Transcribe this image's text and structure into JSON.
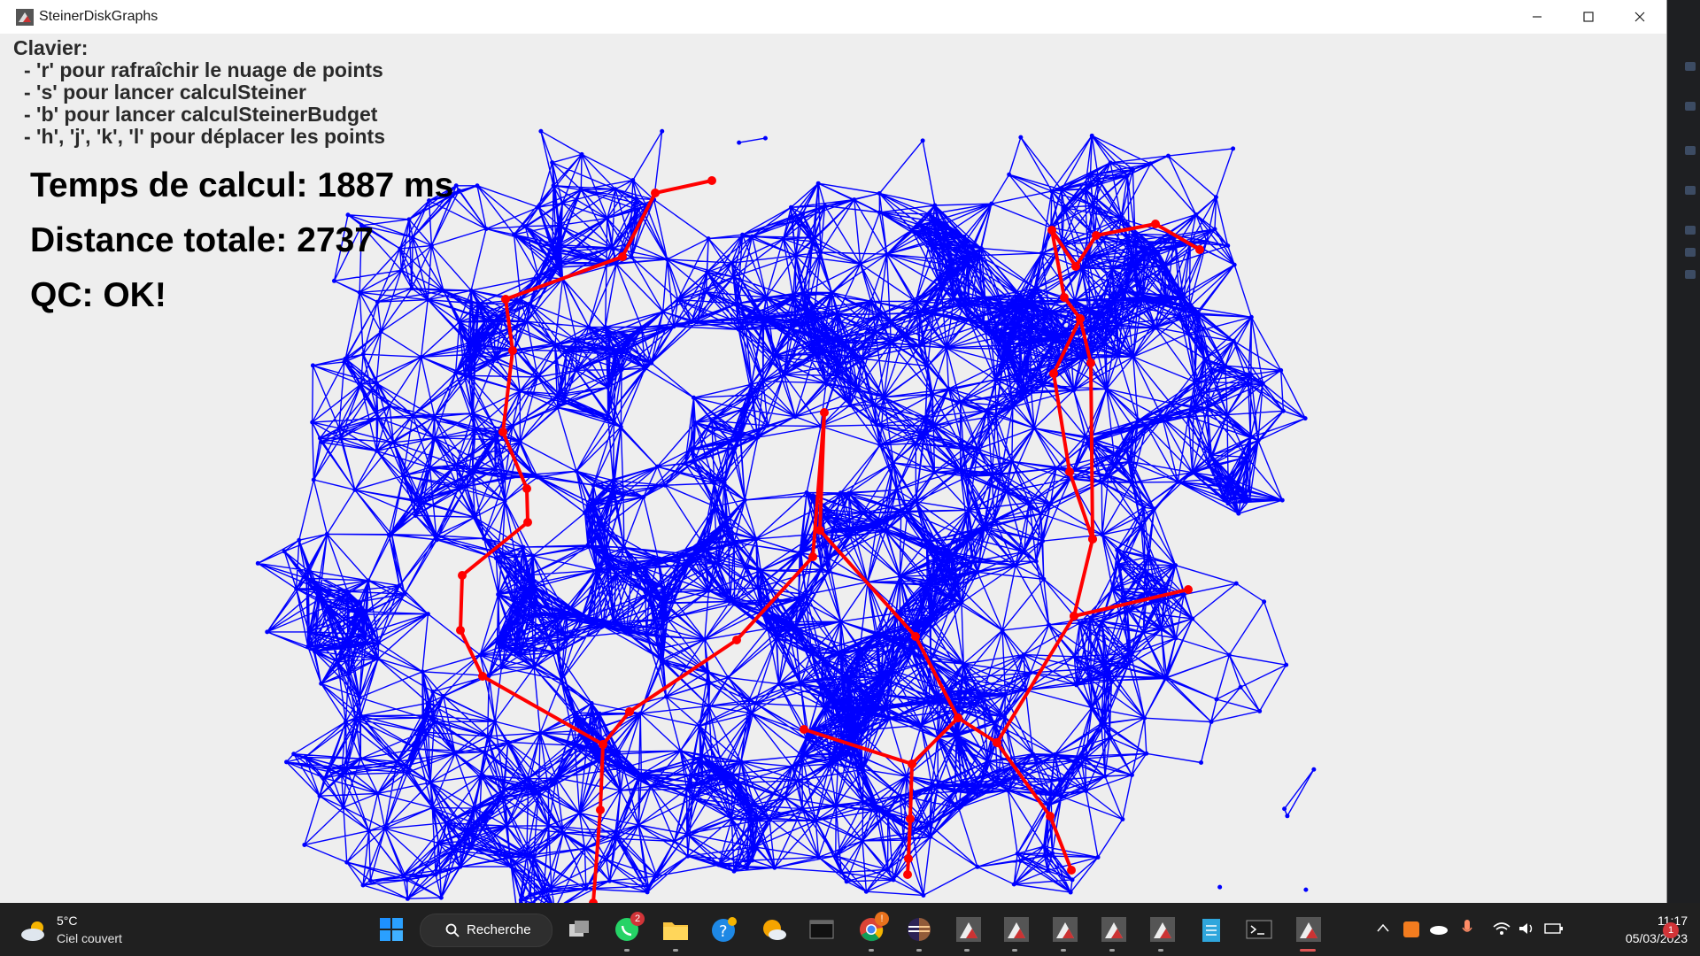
{
  "window": {
    "title": "SteinerDiskGraphs",
    "minimize_label": "Minimize",
    "maximize_label": "Maximize",
    "close_label": "Close"
  },
  "help": {
    "heading": "Clavier:",
    "lines": [
      "- 'r' pour rafraîchir le nuage de points",
      "- 's' pour lancer calculSteiner",
      "- 'b' pour lancer calculSteinerBudget",
      "- 'h', 'j', 'k', 'l' pour déplacer les points"
    ]
  },
  "stats": {
    "time": "Temps de calcul: 1887 ms",
    "distance": "Distance totale: 2737",
    "qc": "QC: OK!"
  },
  "colors": {
    "graph_edges": "#0000ff",
    "steiner_tree": "#ff0000",
    "canvas_bg": "#eeeeee"
  },
  "taskbar": {
    "weather_temp": "5°C",
    "weather_desc": "Ciel couvert",
    "search_label": "Recherche",
    "whatsapp_badge": "2",
    "chrome_badge": "!",
    "clock_time": "11:17",
    "clock_date": "05/03/2023",
    "notification_badge": "1",
    "apps": [
      "start-icon",
      "task-view-icon",
      "whatsapp-icon",
      "file-explorer-icon",
      "help-icon",
      "weather-app-icon",
      "terminal-icon",
      "chrome-icon",
      "eclipse-icon",
      "java-app-icon",
      "java-app-icon",
      "java-app-icon",
      "java-app-icon",
      "java-app-icon",
      "notepad-icon",
      "terminal-icon",
      "java-app-icon"
    ]
  }
}
